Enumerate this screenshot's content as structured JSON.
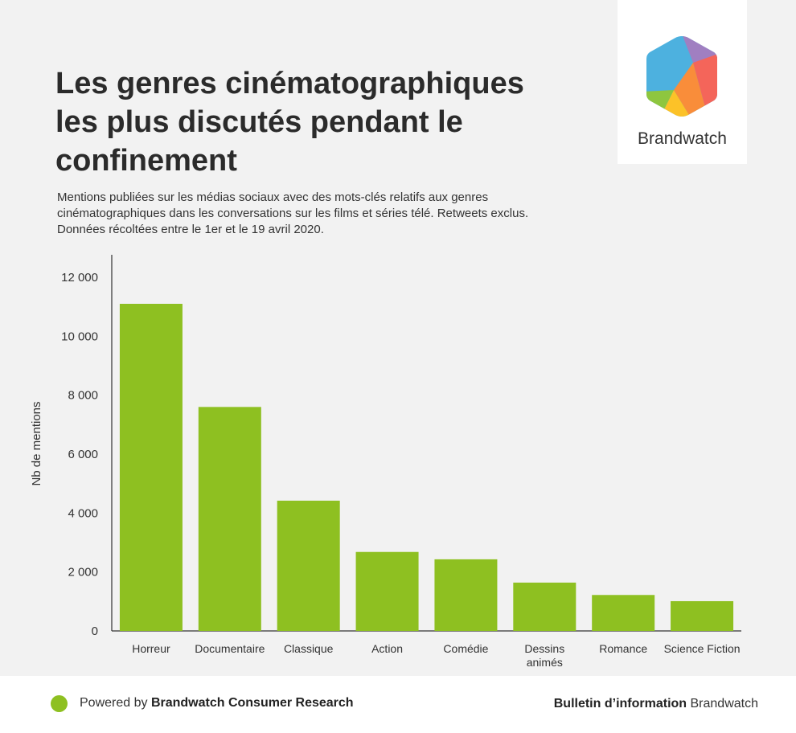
{
  "logo": {
    "brand": "Brandwatch"
  },
  "title": "Les genres cinématographiques les plus discutés pendant le confinement",
  "subtitle": " Mentions publiées sur les médias sociaux avec des mots-clés relatifs aux genres cinématographiques dans les conversations sur les films et séries télé. Retweets exclus. Données récoltées entre le 1er et le 19 avril 2020.",
  "colors": {
    "bar": "#8ec021",
    "axis": "#333333",
    "background": "#f2f2f2"
  },
  "chart_data": {
    "type": "bar",
    "categories": [
      "Horreur",
      "Documentaire",
      "Classique",
      "Action",
      "Comédie",
      "Dessins animés",
      "Romance",
      "Science Fiction"
    ],
    "category_lines": [
      [
        "Horreur"
      ],
      [
        "Documentaire"
      ],
      [
        "Classique"
      ],
      [
        "Action"
      ],
      [
        "Comédie"
      ],
      [
        "Dessins",
        "animés"
      ],
      [
        "Romance"
      ],
      [
        "Science Fiction"
      ]
    ],
    "values": [
      11100,
      7600,
      4420,
      2680,
      2430,
      1640,
      1220,
      1010
    ],
    "ylabel": "Nb de mentions",
    "xlabel": "",
    "ylim": [
      0,
      12000
    ],
    "yticks": [
      0,
      2000,
      4000,
      6000,
      8000,
      10000,
      12000
    ],
    "ytick_labels": [
      "0",
      "2 000",
      "4 000",
      "6 000",
      "8 000",
      "10 000",
      "12 000"
    ],
    "grid": false,
    "legend": "none"
  },
  "footer": {
    "powered_prefix": "Powered by ",
    "powered_brand": "Brandwatch Consumer Research",
    "bulletin_bold": "Bulletin d’information",
    "bulletin_rest": " Brandwatch"
  }
}
